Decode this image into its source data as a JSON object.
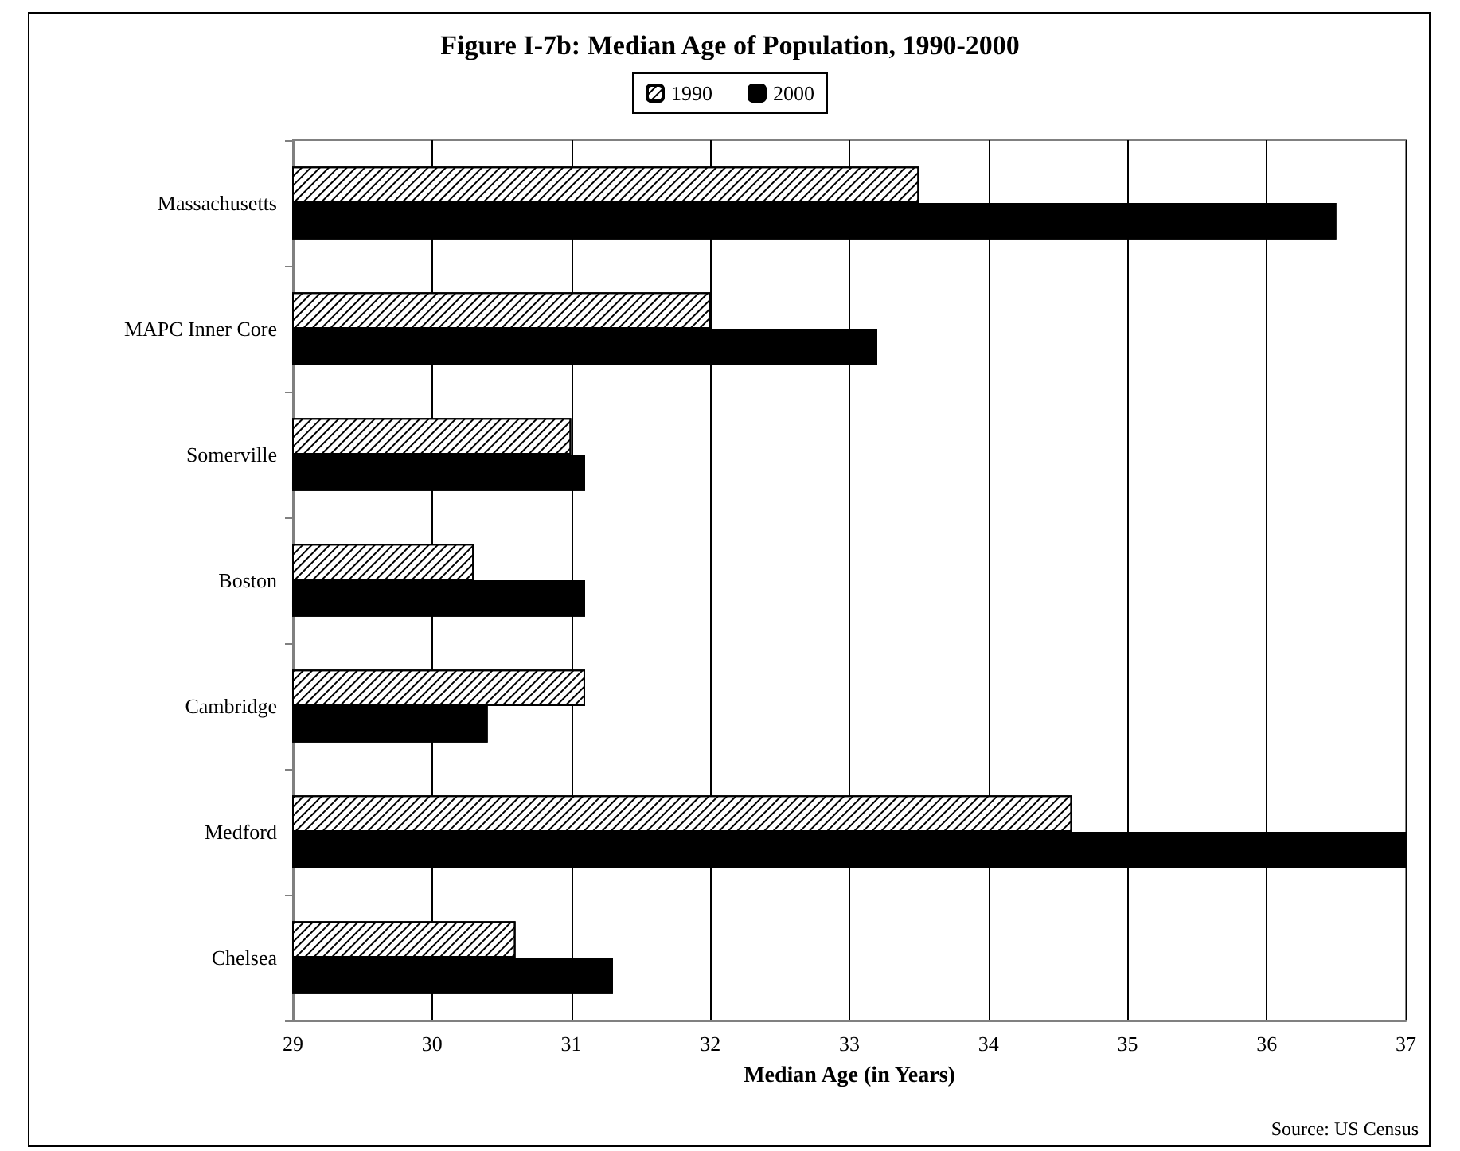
{
  "chart_data": {
    "type": "bar",
    "orientation": "horizontal",
    "title": "Figure I-7b: Median Age of Population, 1990-2000",
    "xlabel": "Median Age (in Years)",
    "categories": [
      "Massachusetts",
      "MAPC Inner Core",
      "Somerville",
      "Boston",
      "Cambridge",
      "Medford",
      "Chelsea"
    ],
    "series": [
      {
        "name": "1990",
        "color": "#ffffff",
        "values": [
          33.5,
          32.0,
          31.0,
          30.3,
          31.1,
          34.6,
          30.6
        ]
      },
      {
        "name": "2000",
        "color": "#000000",
        "values": [
          36.5,
          33.2,
          31.1,
          31.1,
          30.4,
          37.0,
          31.3
        ]
      }
    ],
    "xlim": [
      29,
      37
    ],
    "xticks": [
      29,
      30,
      31,
      32,
      33,
      34,
      35,
      36,
      37
    ],
    "grid": "x",
    "legend": "top",
    "annotations": [
      "Source: US Census"
    ]
  }
}
